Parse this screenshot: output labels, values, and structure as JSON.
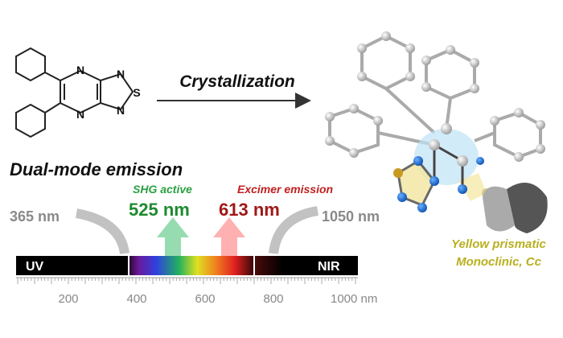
{
  "reaction": {
    "label": "Crystallization"
  },
  "molecule": {
    "atoms": [
      "N",
      "N",
      "N",
      "S",
      "N"
    ]
  },
  "headline": "Dual-mode emission",
  "emissions": {
    "shg": {
      "label": "SHG active",
      "wavelength": "525 nm"
    },
    "excimer": {
      "label": "Excimer emission",
      "wavelength": "613 nm"
    }
  },
  "range": {
    "low": "365 nm",
    "high": "1050 nm"
  },
  "spectrum": {
    "left": "UV",
    "right": "NIR",
    "ticks": [
      "200",
      "400",
      "600",
      "800",
      "1000 nm"
    ]
  },
  "crystal": {
    "habit": "Yellow prismatic",
    "system": "Monoclinic, Cc"
  }
}
